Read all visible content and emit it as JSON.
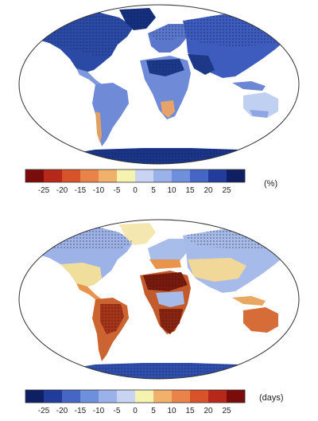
{
  "panels": [
    {
      "id": "top",
      "unit": "(%)",
      "colorbar": {
        "ticks": [
          "-25",
          "-20",
          "-15",
          "-10",
          "-5",
          "0",
          "5",
          "10",
          "15",
          "20",
          "25"
        ],
        "colors": [
          "#7a0c0c",
          "#b5281a",
          "#d8532a",
          "#e9834a",
          "#f1b06b",
          "#f6f3b0",
          "#c9d4f2",
          "#9bb1ea",
          "#6e8fdc",
          "#4566c4",
          "#213c9a",
          "#0f1f63"
        ]
      },
      "map_colors": {
        "ocean": "#ffffff",
        "land_default": "#6d88d4",
        "land_dark": "#1d3a8a",
        "land_mid": "#8aa3e0",
        "land_light": "#c8d5f2",
        "land_red": "#d85a3a",
        "land_orange": "#f0b070"
      }
    },
    {
      "id": "bottom",
      "unit": "(days)",
      "colorbar": {
        "ticks": [
          "-25",
          "-20",
          "-15",
          "-10",
          "-5",
          "0",
          "5",
          "10",
          "15",
          "20",
          "25"
        ],
        "colors": [
          "#0f1f63",
          "#213c9a",
          "#4566c4",
          "#6e8fdc",
          "#9bb1ea",
          "#c9d4f2",
          "#f6f3b0",
          "#f1b06b",
          "#e9834a",
          "#d8532a",
          "#b5281a",
          "#7a0c0c"
        ]
      },
      "map_colors": {
        "ocean": "#ffffff",
        "land_default": "#a6bbe9",
        "land_dark": "#3a58b5",
        "land_yellow": "#f4e6a0",
        "land_orange": "#e8944c",
        "land_red": "#b8361c",
        "land_darkred": "#7a1a0c"
      }
    }
  ]
}
